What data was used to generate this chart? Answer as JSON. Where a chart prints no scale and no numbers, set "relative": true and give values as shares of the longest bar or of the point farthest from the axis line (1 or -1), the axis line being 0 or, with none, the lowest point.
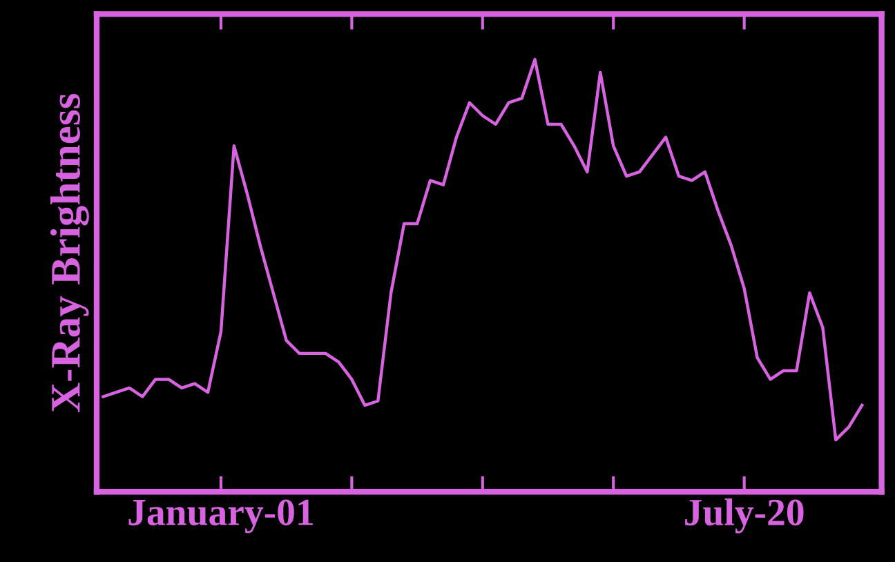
{
  "chart_data": {
    "type": "line",
    "ylabel": "X-Ray Brightness",
    "relative": true,
    "categories": [
      null,
      null,
      null,
      null,
      null,
      null,
      null,
      null,
      null,
      "January-01",
      null,
      null,
      null,
      null,
      null,
      null,
      null,
      null,
      null,
      null,
      null,
      null,
      null,
      null,
      null,
      null,
      null,
      null,
      null,
      null,
      null,
      null,
      null,
      null,
      null,
      null,
      null,
      null,
      null,
      null,
      null,
      null,
      null,
      null,
      null,
      null,
      null,
      null,
      null,
      "July-20",
      null,
      null,
      null,
      null,
      null,
      null,
      null,
      null,
      null,
      null
    ],
    "tick_labels": "x",
    "series": [
      {
        "color": "#d763e0",
        "values": [
          0.22,
          0.23,
          0.24,
          0.22,
          0.26,
          0.26,
          0.24,
          0.25,
          0.23,
          0.37,
          0.8,
          0.69,
          0.57,
          0.46,
          0.35,
          0.32,
          0.32,
          0.32,
          0.3,
          0.26,
          0.2,
          0.21,
          0.46,
          0.62,
          0.62,
          0.72,
          0.71,
          0.82,
          0.9,
          0.87,
          0.85,
          0.9,
          0.91,
          1.0,
          0.85,
          0.85,
          0.8,
          0.74,
          0.97,
          0.8,
          0.73,
          0.74,
          0.78,
          0.82,
          0.73,
          0.72,
          0.74,
          0.65,
          0.57,
          0.47,
          0.31,
          0.26,
          0.28,
          0.28,
          0.46,
          0.38,
          0.12,
          0.15,
          0.2,
          null
        ]
      }
    ]
  }
}
